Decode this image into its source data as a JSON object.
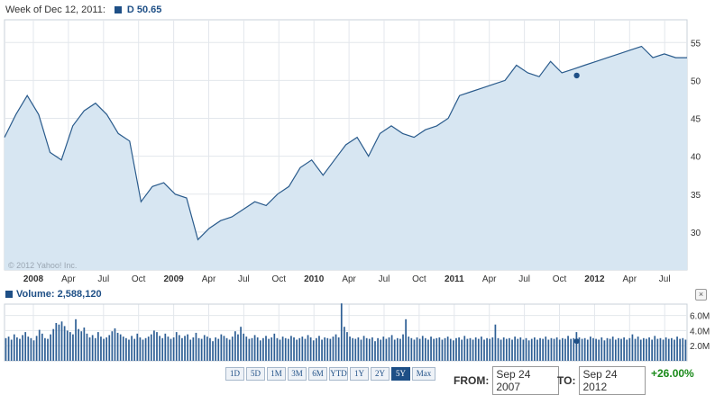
{
  "header": {
    "week_label": "Week of Dec 12, 2011:",
    "symbol_value": "D 50.65",
    "copyright": "© 2012 Yahoo! Inc."
  },
  "volume": {
    "label": "Volume: 2,588,120",
    "close_label": "×"
  },
  "range_buttons": [
    "1D",
    "5D",
    "1M",
    "3M",
    "6M",
    "YTD",
    "1Y",
    "2Y",
    "5Y",
    "Max"
  ],
  "active_range": "5Y",
  "dates": {
    "from_label": "FROM:",
    "from_value": "Sep 24 2007",
    "to_label": "TO:",
    "to_value": "Sep 24 2012"
  },
  "change": "+26.00%",
  "colors": {
    "line": "#2a5b8c",
    "fill": "#d7e6f2",
    "volume_bar": "#2e5f95",
    "grid": "#e3e7ec",
    "positive": "#1a8a1a"
  },
  "chart_data": [
    {
      "type": "area",
      "x_tick_labels": [
        "2008",
        "Apr",
        "Jul",
        "Oct",
        "2009",
        "Apr",
        "Jul",
        "Oct",
        "2010",
        "Apr",
        "Jul",
        "Oct",
        "2011",
        "Apr",
        "Jul",
        "Oct",
        "2012",
        "Apr",
        "Jul"
      ],
      "y_ticks": [
        30,
        35,
        40,
        45,
        50,
        55
      ],
      "ylim": [
        25,
        58
      ],
      "xlim": [
        0,
        60
      ],
      "highlight": {
        "label": "Week of Dec 12, 2011",
        "value": 50.65
      },
      "series": [
        {
          "name": "D",
          "x": [
            0,
            1,
            2,
            3,
            4,
            5,
            6,
            7,
            8,
            9,
            10,
            11,
            12,
            13,
            14,
            15,
            16,
            17,
            18,
            19,
            20,
            21,
            22,
            23,
            24,
            25,
            26,
            27,
            28,
            29,
            30,
            31,
            32,
            33,
            34,
            35,
            36,
            37,
            38,
            39,
            40,
            41,
            42,
            43,
            44,
            45,
            46,
            47,
            48,
            49,
            50,
            51,
            52,
            53,
            54,
            55,
            56,
            57,
            58,
            59,
            60
          ],
          "values": [
            42.5,
            45.5,
            48.0,
            45.5,
            40.5,
            39.5,
            44.0,
            46.0,
            47.0,
            45.5,
            43.0,
            42.0,
            34.0,
            36.0,
            36.5,
            35.0,
            34.5,
            29.0,
            30.5,
            31.5,
            32.0,
            33.0,
            34.0,
            33.5,
            35.0,
            36.0,
            38.5,
            39.5,
            37.5,
            39.5,
            41.5,
            42.5,
            40.0,
            43.0,
            44.0,
            43.0,
            42.5,
            43.5,
            44.0,
            45.0,
            48.0,
            48.5,
            49.0,
            49.5,
            50.0,
            52.0,
            51.0,
            50.5,
            52.5,
            51.0,
            51.5,
            52.0,
            52.5,
            53.0,
            53.5,
            54.0,
            54.5,
            53.0,
            53.5,
            53.0,
            53.0
          ]
        }
      ]
    },
    {
      "type": "bar",
      "title": "Volume",
      "y_tick_labels": [
        "2.0M",
        "4.0M",
        "6.0M"
      ],
      "y_ticks": [
        2000000,
        4000000,
        6000000
      ],
      "ylim": [
        0,
        7500000
      ],
      "highlight": {
        "label": "Week of Dec 12, 2011",
        "value": 2588120
      },
      "series": [
        {
          "name": "Volume",
          "values": [
            3.0,
            3.2,
            2.8,
            3.5,
            3.1,
            2.9,
            3.4,
            3.8,
            3.2,
            3.0,
            2.7,
            3.3,
            4.1,
            3.6,
            3.0,
            2.9,
            3.5,
            4.2,
            5.0,
            4.8,
            5.2,
            4.6,
            4.0,
            3.8,
            3.5,
            5.5,
            4.2,
            3.9,
            4.4,
            3.6,
            3.1,
            3.4,
            3.0,
            3.8,
            3.2,
            2.9,
            3.1,
            3.4,
            3.9,
            4.3,
            3.7,
            3.5,
            3.2,
            3.0,
            2.8,
            3.3,
            2.9,
            3.6,
            3.1,
            2.8,
            3.0,
            3.2,
            3.5,
            4.0,
            3.8,
            3.3,
            3.0,
            3.6,
            3.2,
            2.9,
            3.1,
            3.8,
            3.4,
            3.0,
            3.3,
            3.5,
            2.8,
            3.1,
            3.7,
            3.0,
            2.9,
            3.4,
            3.2,
            3.0,
            2.6,
            3.1,
            2.9,
            3.5,
            3.3,
            3.0,
            2.8,
            3.2,
            3.9,
            3.5,
            4.5,
            3.6,
            3.2,
            2.9,
            3.0,
            3.4,
            3.1,
            2.7,
            3.0,
            3.3,
            2.9,
            3.1,
            3.6,
            3.0,
            2.8,
            3.2,
            3.0,
            2.9,
            3.3,
            3.1,
            2.8,
            3.0,
            3.2,
            2.9,
            3.4,
            3.1,
            2.7,
            3.0,
            3.3,
            2.8,
            3.1,
            3.0,
            2.9,
            3.2,
            3.5,
            3.1,
            7.6,
            4.5,
            3.8,
            3.2,
            3.0,
            2.9,
            3.1,
            2.8,
            3.3,
            3.0,
            2.9,
            3.1,
            2.6,
            3.0,
            2.8,
            3.2,
            2.9,
            3.1,
            3.4,
            2.8,
            3.0,
            2.9,
            3.5,
            5.5,
            3.2,
            3.0,
            2.8,
            3.1,
            2.9,
            3.3,
            3.0,
            2.8,
            3.2,
            2.9,
            3.0,
            3.1,
            2.8,
            3.0,
            3.2,
            2.9,
            2.7,
            3.0,
            3.1,
            2.8,
            3.3,
            2.9,
            3.0,
            2.8,
            3.1,
            2.9,
            3.2,
            2.8,
            3.0,
            2.9,
            3.1,
            4.8,
            3.0,
            2.8,
            3.1,
            2.9,
            3.0,
            2.8,
            3.2,
            2.9,
            3.1,
            2.8,
            3.0,
            2.7,
            2.9,
            3.1,
            2.8,
            3.0,
            2.9,
            3.2,
            2.8,
            3.0,
            2.9,
            3.1,
            2.8,
            3.0,
            2.9,
            3.3,
            2.9,
            3.0,
            3.8,
            3.1,
            2.9,
            3.0,
            2.8,
            3.2,
            3.0,
            2.9,
            2.8,
            3.1,
            2.7,
            3.0,
            2.9,
            3.2,
            2.8,
            3.0,
            2.9,
            3.1,
            2.8,
            3.0,
            3.5,
            2.9,
            3.2,
            2.8,
            3.0,
            2.9,
            3.1,
            2.8,
            3.3,
            2.9,
            3.0,
            2.8,
            3.1,
            2.9,
            3.0,
            2.8,
            3.2,
            2.9,
            3.0,
            2.8
          ]
        }
      ]
    }
  ]
}
